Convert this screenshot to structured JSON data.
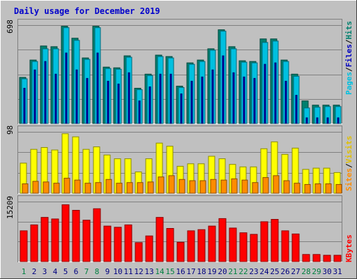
{
  "title": "Daily usage for December 2019",
  "colors": {
    "background": "#c0c0c0",
    "title": "#0000cc",
    "hits": "#00806e",
    "files": "#00c0e0",
    "pages": "#0000c0",
    "visits": "#ffff00",
    "sites": "#ff8c00",
    "kbytes": "#ff0000",
    "weekday_label": "#000080",
    "weekend_label": "#008040"
  },
  "legends": {
    "top": [
      "Pages",
      "/",
      "Files",
      "/",
      "Hits"
    ],
    "middle": [
      "Sites",
      "/",
      "Visits"
    ],
    "bottom": [
      "KBytes"
    ]
  },
  "axis_max_labels": {
    "top": "698",
    "middle": "98",
    "bottom": "15209"
  },
  "chart_data": [
    {
      "type": "bar",
      "name": "hits-files-pages",
      "categories": [
        "1",
        "2",
        "3",
        "4",
        "5",
        "6",
        "7",
        "8",
        "9",
        "10",
        "11",
        "12",
        "13",
        "14",
        "15",
        "16",
        "17",
        "18",
        "19",
        "20",
        "21",
        "22",
        "23",
        "24",
        "25",
        "26",
        "27",
        "28",
        "29",
        "30",
        "31"
      ],
      "weekend_categories": [
        "1",
        "7",
        "8",
        "14",
        "15",
        "21",
        "22",
        "28",
        "29"
      ],
      "ylim": [
        0,
        698
      ],
      "series": [
        {
          "name": "Hits",
          "values": [
            327,
            450,
            550,
            545,
            690,
            605,
            465,
            690,
            400,
            395,
            480,
            250,
            350,
            485,
            475,
            265,
            430,
            450,
            530,
            665,
            545,
            445,
            440,
            600,
            600,
            450,
            350,
            160,
            130,
            130,
            130
          ]
        },
        {
          "name": "Files",
          "values": [
            317,
            440,
            530,
            530,
            680,
            590,
            455,
            680,
            390,
            385,
            470,
            240,
            340,
            475,
            465,
            255,
            420,
            440,
            520,
            655,
            530,
            435,
            430,
            575,
            585,
            440,
            335,
            110,
            115,
            120,
            120
          ]
        },
        {
          "name": "Pages",
          "values": [
            250,
            380,
            440,
            350,
            500,
            380,
            320,
            500,
            300,
            280,
            360,
            160,
            260,
            350,
            350,
            210,
            300,
            330,
            380,
            480,
            360,
            330,
            320,
            420,
            430,
            300,
            200,
            40,
            40,
            40,
            40
          ]
        }
      ]
    },
    {
      "type": "bar",
      "name": "visits-sites",
      "categories": [
        "1",
        "2",
        "3",
        "4",
        "5",
        "6",
        "7",
        "8",
        "9",
        "10",
        "11",
        "12",
        "13",
        "14",
        "15",
        "16",
        "17",
        "18",
        "19",
        "20",
        "21",
        "22",
        "23",
        "24",
        "25",
        "26",
        "27",
        "28",
        "29",
        "30",
        "31"
      ],
      "ylim": [
        0,
        98
      ],
      "series": [
        {
          "name": "Visits",
          "values": [
            48,
            70,
            73,
            69,
            95,
            90,
            70,
            74,
            61,
            55,
            55,
            34,
            55,
            80,
            75,
            43,
            47,
            47,
            59,
            55,
            46,
            42,
            42,
            71,
            82,
            62,
            72,
            38,
            40,
            40,
            33
          ]
        },
        {
          "name": "Sites",
          "values": [
            15,
            19,
            18,
            16,
            24,
            21,
            16,
            17,
            22,
            16,
            17,
            17,
            18,
            26,
            28,
            22,
            20,
            20,
            22,
            21,
            23,
            21,
            17,
            25,
            28,
            20,
            16,
            14,
            15,
            15,
            14
          ]
        }
      ]
    },
    {
      "type": "bar",
      "name": "kbytes",
      "categories": [
        "1",
        "2",
        "3",
        "4",
        "5",
        "6",
        "7",
        "8",
        "9",
        "10",
        "11",
        "12",
        "13",
        "14",
        "15",
        "16",
        "17",
        "18",
        "19",
        "20",
        "21",
        "22",
        "23",
        "24",
        "25",
        "26",
        "27",
        "28",
        "29",
        "30",
        "31"
      ],
      "ylim": [
        0,
        15209
      ],
      "series": [
        {
          "name": "KBytes",
          "values": [
            7800,
            9300,
            11200,
            10800,
            14400,
            13000,
            10500,
            13400,
            9000,
            8700,
            9300,
            4800,
            6500,
            11200,
            8400,
            4900,
            7800,
            8100,
            9000,
            10900,
            8500,
            7300,
            6900,
            10100,
            10700,
            7800,
            7000,
            1800,
            1800,
            1600,
            1600
          ]
        }
      ]
    }
  ]
}
